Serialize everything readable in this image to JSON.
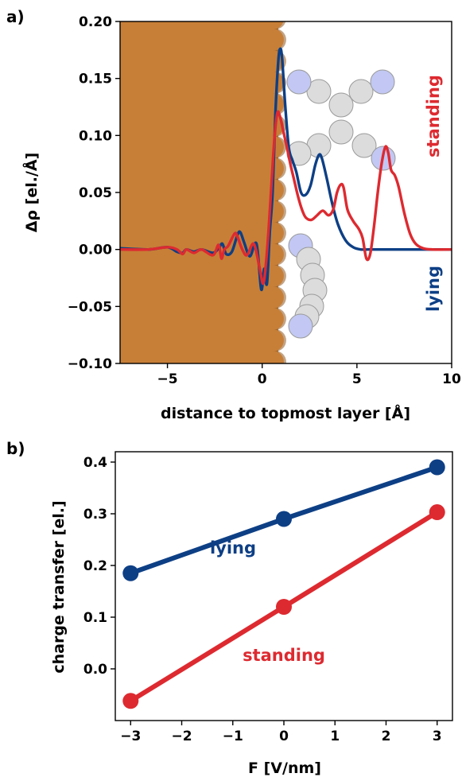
{
  "colors": {
    "blue": "#0d3f85",
    "red": "#dd2a30",
    "metal": "#c77f37",
    "metal_edge": "#8f5a24",
    "atom_c": "#dcdcdc",
    "atom_n": "#c2c8f3",
    "atom_edge": "#9a9a9a"
  },
  "panels": [
    {
      "id": "a",
      "label": "a)"
    },
    {
      "id": "b",
      "label": "b)"
    }
  ],
  "chart_data": [
    {
      "type": "line",
      "xlabel": "distance to topmost layer [Å]",
      "ylabel": "Δρ [el./Å]",
      "xlim": [
        -7.5,
        10
      ],
      "ylim": [
        -0.1,
        0.2
      ],
      "xticks": [
        -5,
        0,
        5,
        10
      ],
      "xtick_labels": [
        "−5",
        "0",
        "5",
        "10"
      ],
      "yticks": [
        -0.1,
        -0.05,
        0.0,
        0.05,
        0.1,
        0.15,
        0.2
      ],
      "ytick_labels": [
        "−0.10",
        "−0.05",
        "0.00",
        "0.05",
        "0.10",
        "0.15",
        "0.20"
      ],
      "grid": false,
      "shaded_region": {
        "x_from": -7.5,
        "x_to": 1.1
      },
      "series": [
        {
          "name": "lying",
          "color_key": "blue",
          "x": [
            -7.5,
            -6,
            -5,
            -4.5,
            -4.2,
            -4,
            -3.6,
            -3.2,
            -2.6,
            -2.3,
            -2.1,
            -1.9,
            -1.6,
            -1.3,
            -1.15,
            -0.95,
            -0.65,
            -0.3,
            -0.05,
            0.1,
            0.25,
            0.4,
            0.55,
            0.7,
            0.85,
            0.95,
            1.05,
            1.2,
            1.4,
            1.6,
            1.8,
            2.05,
            2.3,
            2.55,
            2.8,
            3.0,
            3.15,
            3.4,
            3.7,
            4.0,
            4.4,
            4.8,
            5.2,
            5.6,
            6.0,
            7,
            8,
            10
          ],
          "y": [
            0.001,
            0.0,
            0.002,
            -0.002,
            -0.003,
            0.0,
            -0.002,
            0.0,
            -0.003,
            0.001,
            0.005,
            -0.004,
            -0.002,
            0.013,
            0.015,
            0.006,
            -0.006,
            0.005,
            -0.035,
            -0.017,
            -0.03,
            0.015,
            0.05,
            0.12,
            0.165,
            0.176,
            0.168,
            0.13,
            0.09,
            0.078,
            0.068,
            0.05,
            0.048,
            0.056,
            0.074,
            0.083,
            0.08,
            0.063,
            0.04,
            0.022,
            0.008,
            0.002,
            0.0,
            0.0,
            0.0,
            0.0,
            0.0,
            0.0
          ]
        },
        {
          "name": "standing",
          "color_key": "red",
          "x": [
            -7.5,
            -6,
            -5,
            -4.5,
            -4.2,
            -4,
            -3.6,
            -3.2,
            -2.6,
            -2.3,
            -2.15,
            -2.0,
            -1.8,
            -1.45,
            -1.3,
            -1.05,
            -0.8,
            -0.45,
            -0.15,
            0.05,
            0.2,
            0.35,
            0.5,
            0.65,
            0.8,
            0.95,
            1.1,
            1.3,
            1.5,
            1.7,
            1.9,
            2.1,
            2.3,
            2.6,
            2.9,
            3.2,
            3.5,
            3.75,
            3.95,
            4.15,
            4.3,
            4.5,
            4.8,
            5.1,
            5.3,
            5.5,
            5.7,
            5.9,
            6.1,
            6.3,
            6.5,
            6.65,
            6.8,
            7.0,
            7.2,
            7.5,
            7.8,
            8.1,
            8.5,
            9,
            10
          ],
          "y": [
            0.0,
            0.0,
            0.002,
            0.0,
            -0.004,
            0.0,
            -0.003,
            0.0,
            -0.005,
            0.004,
            -0.008,
            0.0,
            0.003,
            0.014,
            0.011,
            0.0,
            -0.005,
            0.005,
            -0.015,
            -0.03,
            -0.012,
            0.02,
            0.06,
            0.098,
            0.12,
            0.116,
            0.105,
            0.09,
            0.074,
            0.06,
            0.046,
            0.035,
            0.028,
            0.026,
            0.03,
            0.034,
            0.03,
            0.035,
            0.05,
            0.057,
            0.054,
            0.035,
            0.025,
            0.018,
            0.01,
            -0.008,
            -0.004,
            0.02,
            0.05,
            0.075,
            0.09,
            0.085,
            0.07,
            0.065,
            0.055,
            0.032,
            0.014,
            0.005,
            0.001,
            0.0,
            0.0
          ]
        }
      ]
    },
    {
      "type": "line",
      "xlabel": "F [V/nm]",
      "ylabel": "charge transfer [el.]",
      "xlim": [
        -3.3,
        3.3
      ],
      "ylim": [
        -0.1,
        0.42
      ],
      "xticks": [
        -3,
        -2,
        -1,
        0,
        1,
        2,
        3
      ],
      "xtick_labels": [
        "−3",
        "−2",
        "−1",
        "0",
        "1",
        "2",
        "3"
      ],
      "yticks": [
        0.0,
        0.1,
        0.2,
        0.3,
        0.4
      ],
      "ytick_labels": [
        "0.0",
        "0.1",
        "0.2",
        "0.3",
        "0.4"
      ],
      "grid": false,
      "series": [
        {
          "name": "lying",
          "color_key": "blue",
          "x": [
            -3,
            0,
            3
          ],
          "y": [
            0.185,
            0.29,
            0.39
          ]
        },
        {
          "name": "standing",
          "color_key": "red",
          "x": [
            -3,
            0,
            3
          ],
          "y": [
            -0.062,
            0.12,
            0.303
          ]
        }
      ]
    }
  ]
}
